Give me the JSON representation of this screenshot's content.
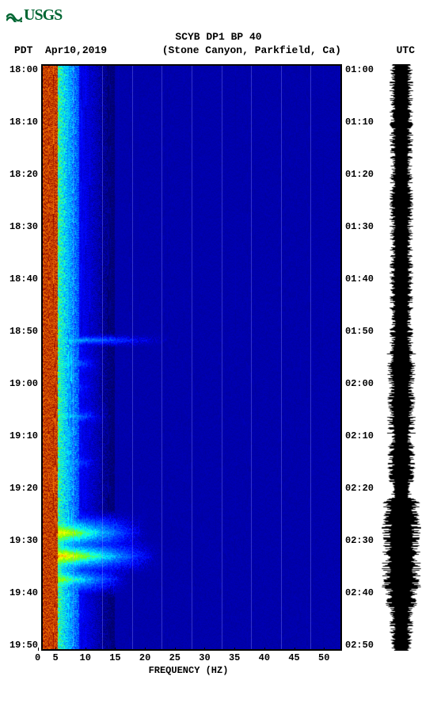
{
  "logo": {
    "text": "USGS",
    "color": "#006633"
  },
  "header": {
    "station": "SCYB DP1 BP 40"
  },
  "subheader": {
    "tz_left": "PDT",
    "date": "Apr10,2019",
    "location": "(Stone Canyon, Parkfield, Ca)",
    "tz_right": "UTC"
  },
  "y_axis_left": [
    "18:00",
    "18:10",
    "18:20",
    "18:30",
    "18:40",
    "18:50",
    "19:00",
    "19:10",
    "19:20",
    "19:30",
    "19:40",
    "19:50"
  ],
  "y_axis_right": [
    "01:00",
    "01:10",
    "01:20",
    "01:30",
    "01:40",
    "01:50",
    "02:00",
    "02:10",
    "02:20",
    "02:30",
    "02:40",
    "02:50"
  ],
  "x_axis": {
    "ticks": [
      "0",
      "5",
      "10",
      "15",
      "20",
      "25",
      "30",
      "35",
      "40",
      "45",
      "50"
    ],
    "label": "FREQUENCY (HZ)"
  },
  "spectrogram": {
    "type": "spectrogram",
    "x_range": [
      0,
      50
    ],
    "grid_x_positions": [
      5,
      10,
      15,
      20,
      25,
      30,
      35,
      40,
      45
    ],
    "time_rows": 120,
    "colormap": {
      "stops": [
        {
          "v": 0.0,
          "c": "#00006b"
        },
        {
          "v": 0.15,
          "c": "#0000ff"
        },
        {
          "v": 0.35,
          "c": "#0080ff"
        },
        {
          "v": 0.5,
          "c": "#00ffff"
        },
        {
          "v": 0.65,
          "c": "#80ff00"
        },
        {
          "v": 0.8,
          "c": "#ffff00"
        },
        {
          "v": 0.9,
          "c": "#ff8000"
        },
        {
          "v": 1.0,
          "c": "#8b0000"
        }
      ]
    },
    "background_value": 0.05,
    "low_freq_band": {
      "freq_range": [
        0,
        2.5
      ],
      "value": 1.0
    },
    "mid_band": {
      "freq_range": [
        2.5,
        6
      ],
      "base_value": 0.55,
      "noise": 0.25
    },
    "falloff_band": {
      "freq_range": [
        6,
        12
      ],
      "base_value": 0.15,
      "noise": 0.1
    },
    "events": [
      {
        "time_frac": 0.47,
        "freq_extent": 22,
        "intensity": 0.55,
        "width": 0.012
      },
      {
        "time_frac": 0.51,
        "freq_extent": 10,
        "intensity": 0.75,
        "width": 0.02
      },
      {
        "time_frac": 0.55,
        "freq_extent": 9,
        "intensity": 0.7,
        "width": 0.018
      },
      {
        "time_frac": 0.6,
        "freq_extent": 11,
        "intensity": 0.72,
        "width": 0.02
      },
      {
        "time_frac": 0.68,
        "freq_extent": 10,
        "intensity": 0.7,
        "width": 0.02
      },
      {
        "time_frac": 0.8,
        "freq_extent": 18,
        "intensity": 0.95,
        "width": 0.04
      },
      {
        "time_frac": 0.84,
        "freq_extent": 20,
        "intensity": 1.0,
        "width": 0.035
      },
      {
        "time_frac": 0.88,
        "freq_extent": 15,
        "intensity": 0.85,
        "width": 0.03
      },
      {
        "time_frac": 0.94,
        "freq_extent": 9,
        "intensity": 0.6,
        "width": 0.02
      }
    ]
  },
  "waveform": {
    "color": "#000000",
    "samples": 740,
    "base_amplitude": 0.6,
    "event_amplitude": 1.0
  }
}
